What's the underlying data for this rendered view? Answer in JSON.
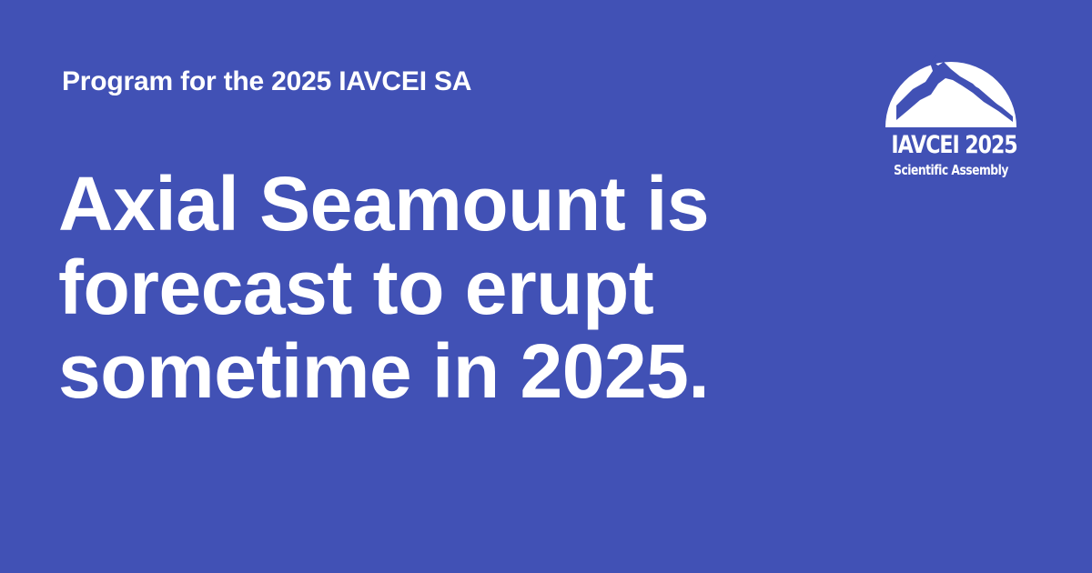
{
  "background_color": "#4151b5",
  "text_color": "#ffffff",
  "kicker": "Program for the 2025 IAVCEI SA",
  "headline": {
    "lines": [
      "Axial Seamount is",
      "forecast to erupt",
      "sometime in 2025."
    ]
  },
  "logo": {
    "icon": "volcano-dome-icon",
    "title": "IAVCEI 2025",
    "subtitle": "Scientific Assembly"
  }
}
